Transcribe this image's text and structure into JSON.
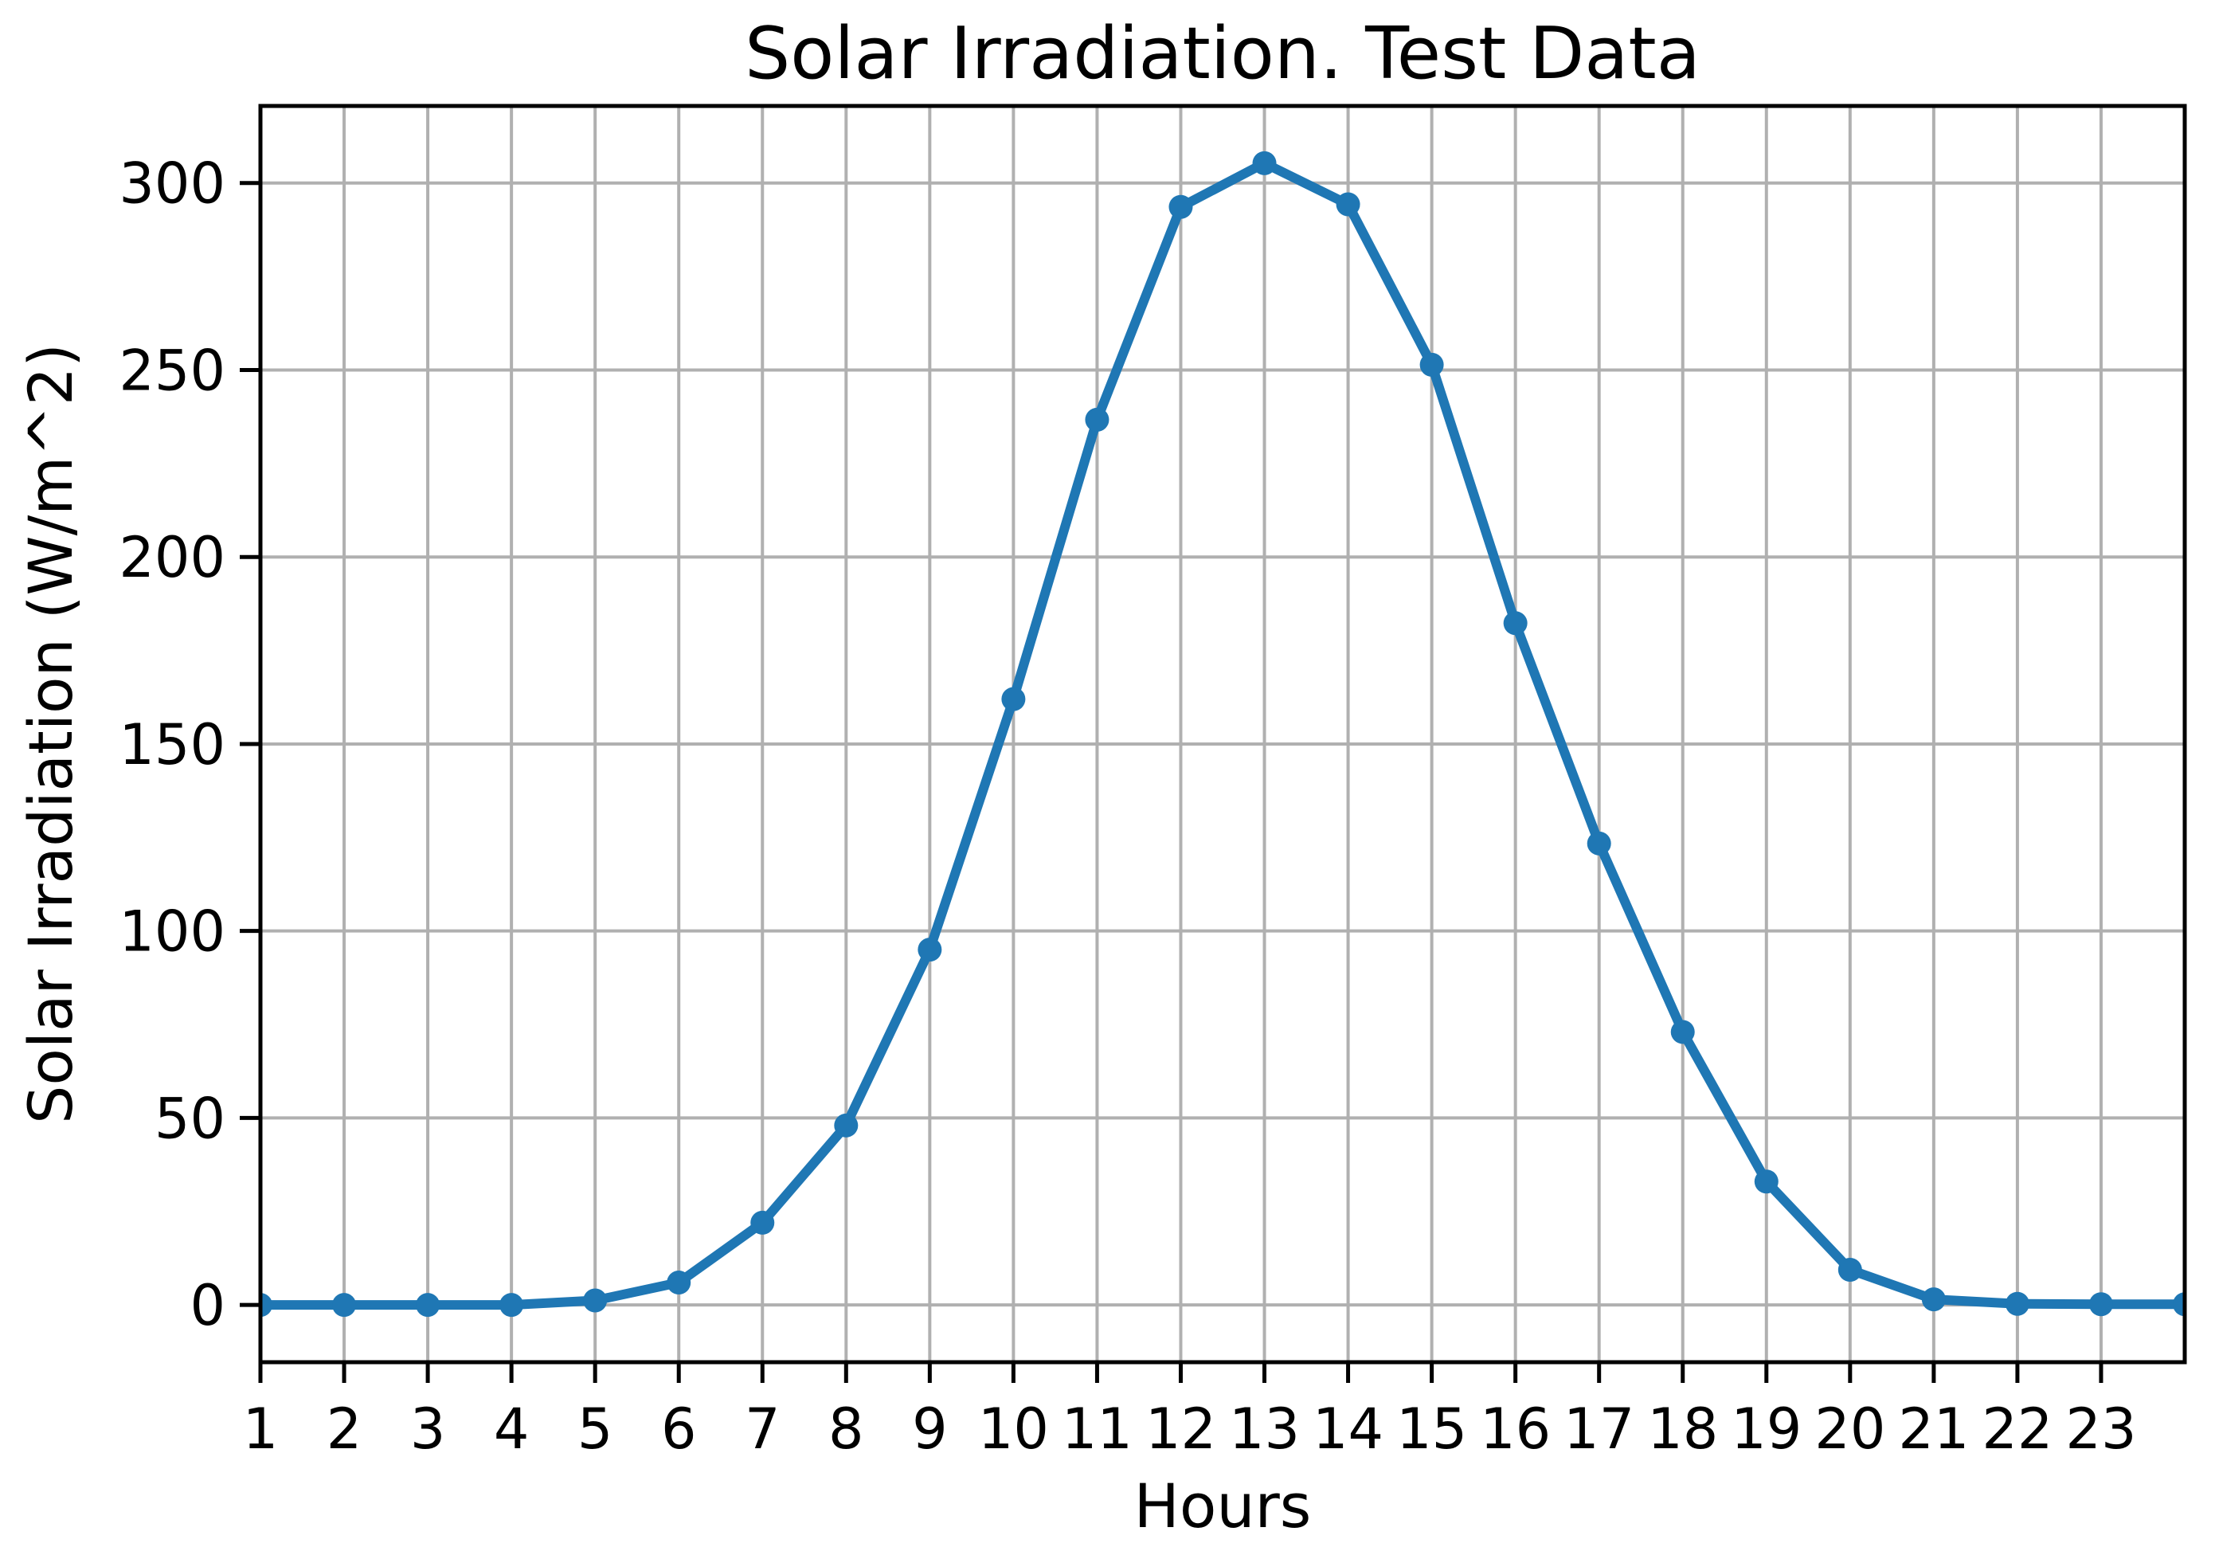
{
  "chart_data": {
    "type": "line",
    "title": "Solar Irradiation. Test Data",
    "xlabel": "Hours",
    "ylabel": "Solar Irradiation (W/m^2)",
    "x": [
      1,
      2,
      3,
      4,
      5,
      6,
      7,
      8,
      9,
      10,
      11,
      12,
      13,
      14,
      15,
      16,
      17,
      18,
      19,
      20,
      21,
      22,
      23,
      24
    ],
    "y": [
      0,
      0,
      0,
      0,
      1.2,
      6,
      22,
      48,
      95,
      162,
      236.7,
      293.6,
      305.3,
      294.3,
      251.4,
      182.3,
      123.4,
      73,
      33,
      9.4,
      1.5,
      0.3,
      0.2,
      0.2
    ],
    "xticks": [
      1,
      2,
      3,
      4,
      5,
      6,
      7,
      8,
      9,
      10,
      11,
      12,
      13,
      14,
      15,
      16,
      17,
      18,
      19,
      20,
      21,
      22,
      23
    ],
    "yticks": [
      0,
      50,
      100,
      150,
      200,
      250,
      300
    ],
    "xlim": [
      1,
      24
    ],
    "ylim": [
      -15.3,
      320.6
    ],
    "grid": true,
    "legend": false,
    "line_color": "#1f77b4",
    "marker": "o",
    "grid_color": "#b0b0b0",
    "axis_color": "#000000",
    "background": "#ffffff"
  }
}
